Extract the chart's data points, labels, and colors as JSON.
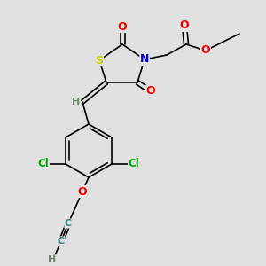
{
  "bg_color": "#e0e0e0",
  "atom_colors": {
    "C": "#000000",
    "H": "#6a8a6a",
    "N": "#0000ee",
    "O": "#ee0000",
    "S": "#cccc00",
    "Cl": "#00aa00"
  },
  "bond_color": "#000000",
  "figsize": [
    3.0,
    3.0
  ],
  "dpi": 100
}
